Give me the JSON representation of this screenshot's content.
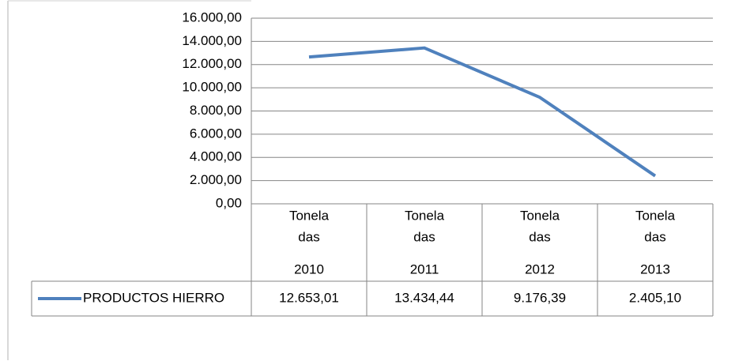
{
  "chart_data": {
    "type": "line",
    "categories": [
      [
        "Tonela",
        "das",
        "2010"
      ],
      [
        "Tonela",
        "das",
        "2011"
      ],
      [
        "Tonela",
        "das",
        "2012"
      ],
      [
        "Tonela",
        "das",
        "2013"
      ]
    ],
    "series": [
      {
        "name": "PRODUCTOS HIERRO",
        "color": "#4f81bd",
        "values": [
          12653.01,
          13434.44,
          9176.39,
          2405.1
        ],
        "value_labels": [
          "12.653,01",
          "13.434,44",
          "9.176,39",
          "2.405,10"
        ]
      }
    ],
    "ylim": [
      0,
      16000
    ],
    "yticks": [
      {
        "value": 0,
        "label": "0,00"
      },
      {
        "value": 2000,
        "label": "2.000,00"
      },
      {
        "value": 4000,
        "label": "4.000,00"
      },
      {
        "value": 6000,
        "label": "6.000,00"
      },
      {
        "value": 8000,
        "label": "8.000,00"
      },
      {
        "value": 10000,
        "label": "10.000,00"
      },
      {
        "value": 12000,
        "label": "12.000,00"
      },
      {
        "value": 14000,
        "label": "14.000,00"
      },
      {
        "value": 16000,
        "label": "16.000,00"
      }
    ],
    "grid": true,
    "data_table": true
  }
}
